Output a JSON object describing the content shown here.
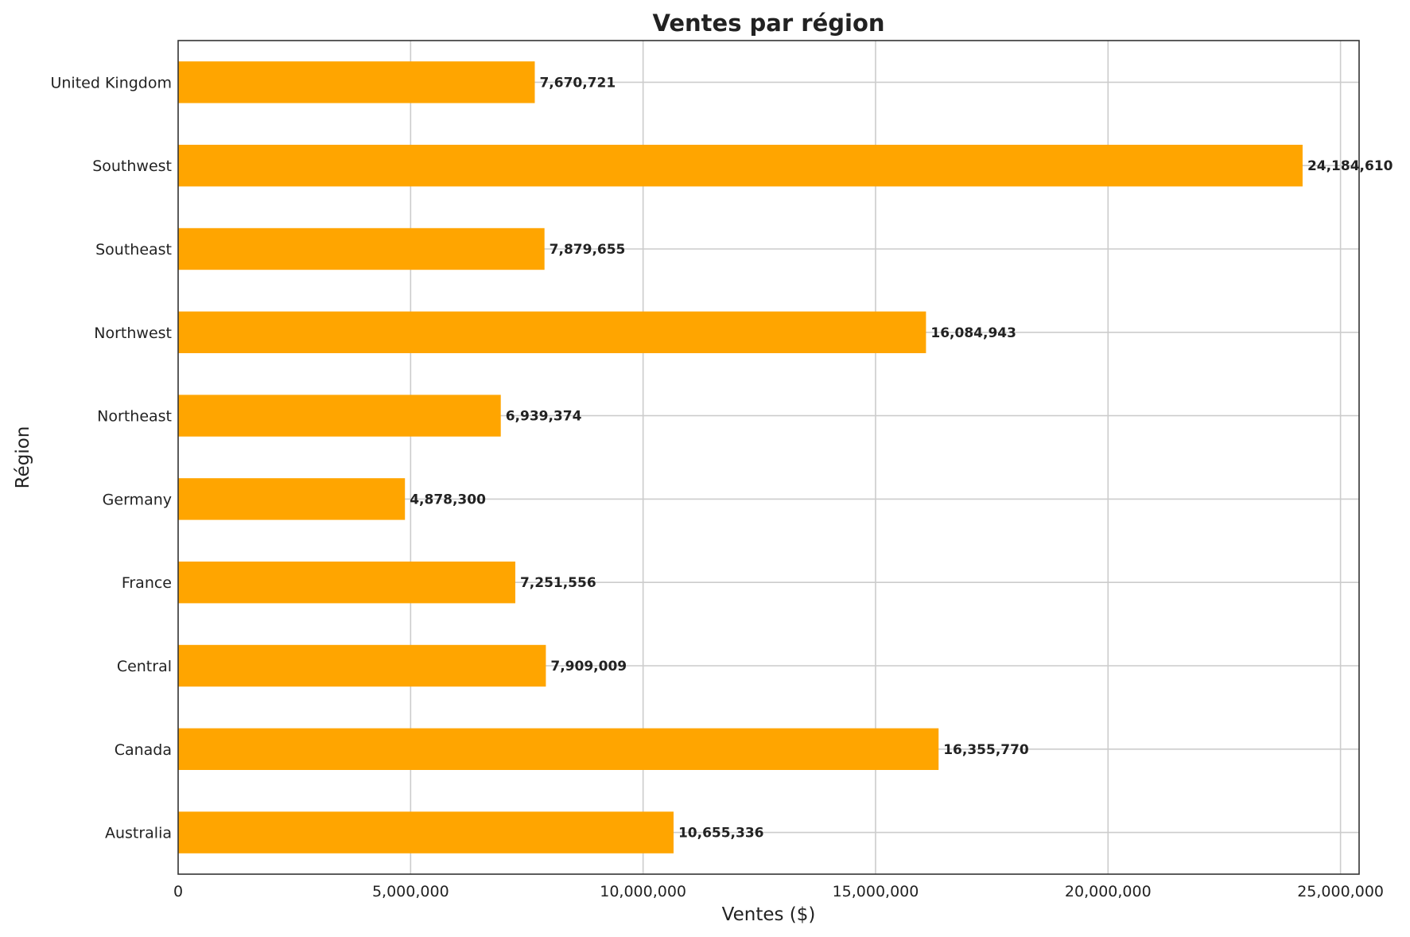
{
  "chart_data": {
    "type": "bar",
    "orientation": "horizontal",
    "title": "Ventes par région",
    "xlabel": "Ventes ($)",
    "ylabel": "Région",
    "xlim": [
      0,
      25400000
    ],
    "xticks": [
      0,
      5000000,
      10000000,
      15000000,
      20000000,
      25000000
    ],
    "xtick_labels": [
      "0",
      "5,000,000",
      "10,000,000",
      "15,000,000",
      "20,000,000",
      "25,000,000"
    ],
    "grid": true,
    "bar_color": "#FFA500",
    "categories": [
      "United Kingdom",
      "Southwest",
      "Southeast",
      "Northwest",
      "Northeast",
      "Germany",
      "France",
      "Central",
      "Canada",
      "Australia"
    ],
    "values": [
      7670721,
      24184610,
      7879655,
      16084943,
      6939374,
      4878300,
      7251556,
      7909009,
      16355770,
      10655336
    ],
    "value_labels": [
      "7,670,721",
      "24,184,610",
      "7,879,655",
      "16,084,943",
      "6,939,374",
      "4,878,300",
      "7,251,556",
      "7,909,009",
      "16,355,770",
      "10,655,336"
    ]
  }
}
